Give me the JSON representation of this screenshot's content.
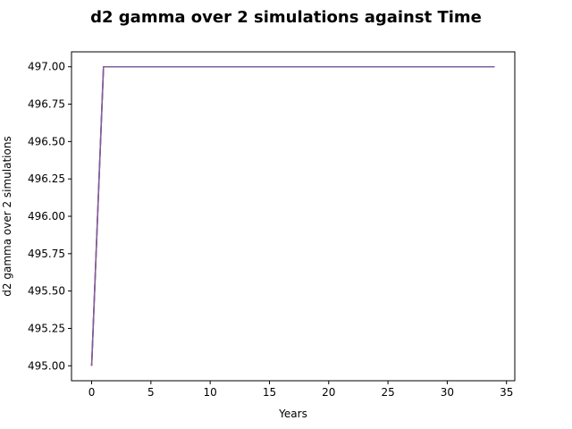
{
  "chart_data": {
    "type": "line",
    "title": "d2 gamma over 2 simulations against Time",
    "xlabel": "Years",
    "ylabel": "d2 gamma over 2 simulations",
    "xlim": [
      -1.7,
      35.7
    ],
    "ylim": [
      494.9,
      497.1
    ],
    "xticks": [
      0,
      5,
      10,
      15,
      20,
      25,
      30,
      35
    ],
    "yticks": [
      495.0,
      495.25,
      495.5,
      495.75,
      496.0,
      496.25,
      496.5,
      496.75,
      497.0
    ],
    "ytick_labels": [
      "495.00",
      "495.25",
      "495.50",
      "495.75",
      "496.00",
      "496.25",
      "496.50",
      "496.75",
      "497.00"
    ],
    "grid": false,
    "series": [
      {
        "color": "#1f77b4",
        "x": [
          0,
          1,
          2,
          3,
          4,
          5,
          6,
          7,
          8,
          9,
          10,
          11,
          12,
          13,
          14,
          15,
          16,
          17,
          18,
          19,
          20,
          21,
          22,
          23,
          24,
          25,
          26,
          27,
          28,
          29,
          30,
          31,
          32,
          33,
          34
        ],
        "y": [
          495,
          497,
          497,
          497,
          497,
          497,
          497,
          497,
          497,
          497,
          497,
          497,
          497,
          497,
          497,
          497,
          497,
          497,
          497,
          497,
          497,
          497,
          497,
          497,
          497,
          497,
          497,
          497,
          497,
          497,
          497,
          497,
          497,
          497,
          497
        ]
      },
      {
        "color": "#d62728",
        "x": [
          0,
          1,
          2,
          3,
          4,
          5,
          6,
          7,
          8,
          9,
          10,
          11,
          12,
          13,
          14,
          15,
          16,
          17,
          18,
          19,
          20,
          21,
          22,
          23,
          24,
          25,
          26,
          27,
          28,
          29,
          30,
          31,
          32,
          33,
          34
        ],
        "y": [
          495,
          497,
          497,
          497,
          497,
          497,
          497,
          497,
          497,
          497,
          497,
          497,
          497,
          497,
          497,
          497,
          497,
          497,
          497,
          497,
          497,
          497,
          497,
          497,
          497,
          497,
          497,
          497,
          497,
          497,
          497,
          497,
          497,
          497,
          497
        ]
      },
      {
        "color": "#7f5fa0",
        "x": [
          0,
          1,
          2,
          3,
          4,
          5,
          6,
          7,
          8,
          9,
          10,
          11,
          12,
          13,
          14,
          15,
          16,
          17,
          18,
          19,
          20,
          21,
          22,
          23,
          24,
          25,
          26,
          27,
          28,
          29,
          30,
          31,
          32,
          33,
          34
        ],
        "y": [
          495,
          497,
          497,
          497,
          497,
          497,
          497,
          497,
          497,
          497,
          497,
          497,
          497,
          497,
          497,
          497,
          497,
          497,
          497,
          497,
          497,
          497,
          497,
          497,
          497,
          497,
          497,
          497,
          497,
          497,
          497,
          497,
          497,
          497,
          497
        ]
      }
    ]
  }
}
